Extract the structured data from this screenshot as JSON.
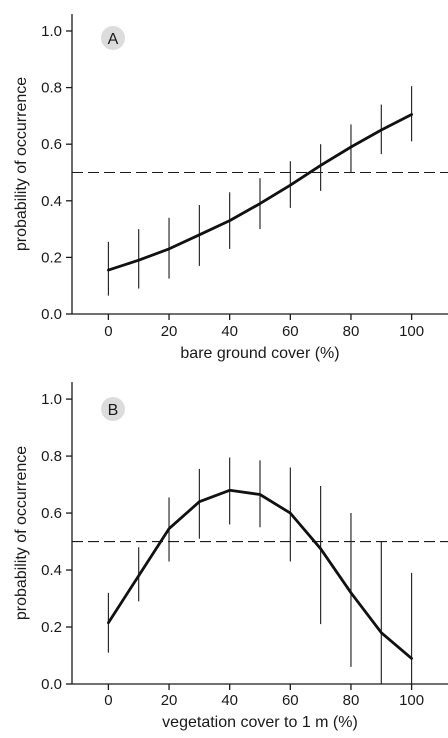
{
  "chart_data": [
    {
      "type": "line",
      "panel_label": "A",
      "xlabel": "bare ground cover (%)",
      "ylabel": "probability of occurrence",
      "xticks": [
        0,
        20,
        40,
        60,
        80,
        100
      ],
      "xtick_labels": [
        "0",
        "20",
        "40",
        "60",
        "80",
        "100"
      ],
      "yticks": [
        0.0,
        0.2,
        0.4,
        0.6,
        0.8,
        1.0
      ],
      "ytick_labels": [
        "0.0",
        "0.2",
        "0.4",
        "0.6",
        "0.8",
        "1.0"
      ],
      "xlim": [
        -12,
        112
      ],
      "ylim": [
        0.0,
        1.06
      ],
      "reference_line": 0.5,
      "x": [
        0,
        10,
        20,
        30,
        40,
        50,
        60,
        70,
        80,
        90,
        100
      ],
      "y": [
        0.155,
        0.19,
        0.23,
        0.28,
        0.33,
        0.39,
        0.455,
        0.525,
        0.59,
        0.65,
        0.705
      ],
      "lower": [
        0.065,
        0.09,
        0.125,
        0.17,
        0.23,
        0.3,
        0.375,
        0.435,
        0.5,
        0.565,
        0.61
      ],
      "upper": [
        0.255,
        0.3,
        0.34,
        0.385,
        0.43,
        0.48,
        0.54,
        0.6,
        0.67,
        0.74,
        0.805
      ],
      "grid": false
    },
    {
      "type": "line",
      "panel_label": "B",
      "xlabel": "vegetation cover to 1 m (%)",
      "ylabel": "probability of occurrence",
      "xticks": [
        0,
        20,
        40,
        60,
        80,
        100
      ],
      "xtick_labels": [
        "0",
        "20",
        "40",
        "60",
        "80",
        "100"
      ],
      "yticks": [
        0.0,
        0.2,
        0.4,
        0.6,
        0.8,
        1.0
      ],
      "ytick_labels": [
        "0.0",
        "0.2",
        "0.4",
        "0.6",
        "0.8",
        "1.0"
      ],
      "xlim": [
        -12,
        112
      ],
      "ylim": [
        0.0,
        1.06
      ],
      "reference_line": 0.5,
      "x": [
        0,
        10,
        20,
        30,
        40,
        50,
        60,
        70,
        80,
        90,
        100
      ],
      "y": [
        0.215,
        0.38,
        0.545,
        0.64,
        0.68,
        0.665,
        0.6,
        0.475,
        0.32,
        0.18,
        0.09
      ],
      "lower": [
        0.11,
        0.29,
        0.43,
        0.51,
        0.56,
        0.55,
        0.43,
        0.21,
        0.06,
        0.0,
        0.0
      ],
      "upper": [
        0.32,
        0.48,
        0.655,
        0.755,
        0.795,
        0.785,
        0.76,
        0.695,
        0.6,
        0.5,
        0.39
      ],
      "grid": false
    }
  ]
}
